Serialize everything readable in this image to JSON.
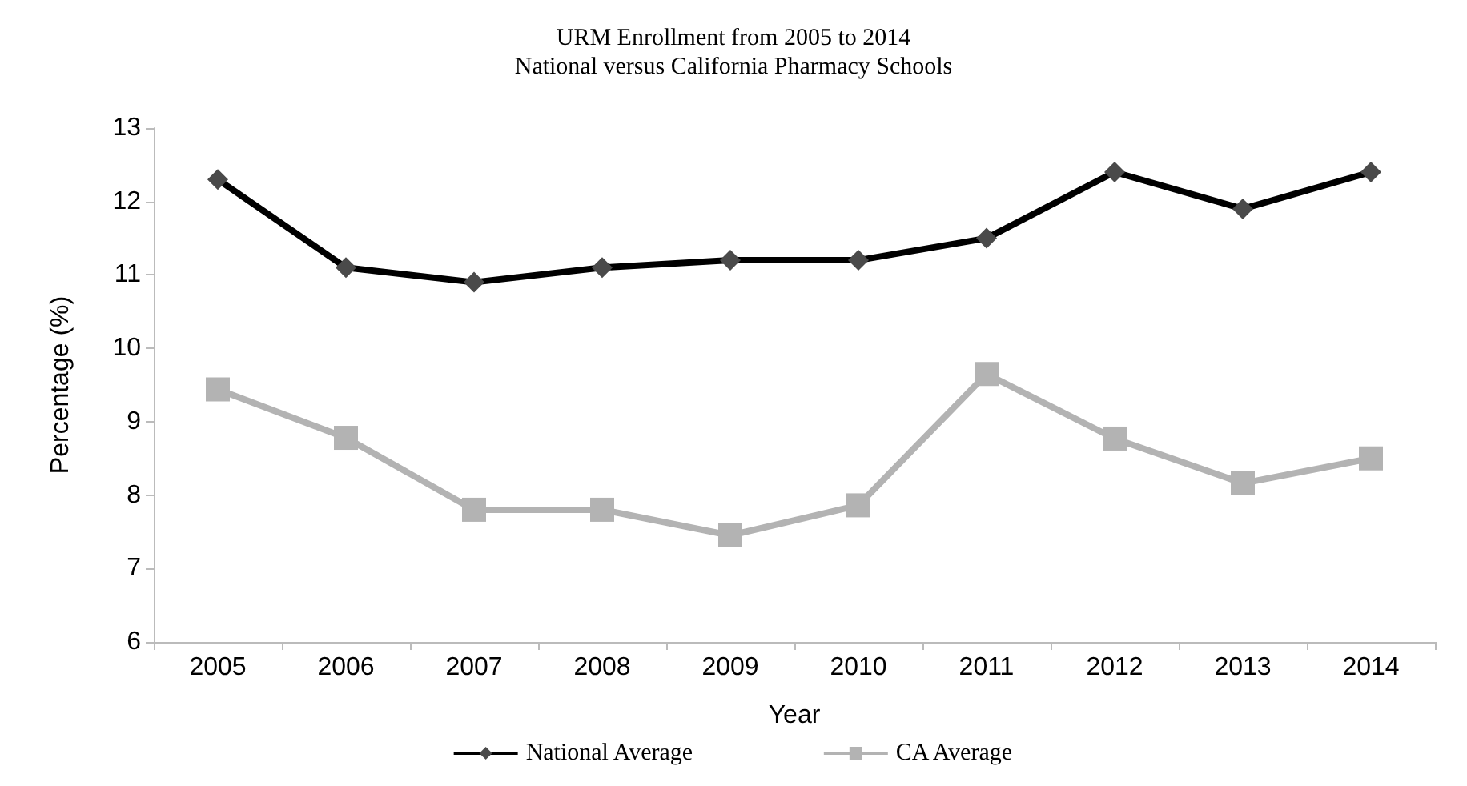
{
  "chart_data": {
    "type": "line",
    "title": "URM Enrollment from 2005 to 2014\nNational versus California Pharmacy Schools",
    "xlabel": "Year",
    "ylabel": "Percentage (%)",
    "categories": [
      "2005",
      "2006",
      "2007",
      "2008",
      "2009",
      "2010",
      "2011",
      "2012",
      "2013",
      "2014"
    ],
    "series": [
      {
        "name": "National Average",
        "color": "#000000",
        "marker": "diamond",
        "values": [
          12.3,
          11.1,
          10.9,
          11.1,
          11.2,
          11.2,
          11.5,
          12.4,
          11.9,
          12.4
        ]
      },
      {
        "name": "CA Average",
        "color": "#b3b3b3",
        "marker": "square",
        "values": [
          9.44,
          8.78,
          7.8,
          7.8,
          7.45,
          7.86,
          9.65,
          8.77,
          8.16,
          8.5
        ]
      }
    ],
    "ylim": [
      6,
      13
    ],
    "yticks": [
      6,
      7,
      8,
      9,
      10,
      11,
      12,
      13
    ],
    "grid": false,
    "legend": "bottom",
    "line_style": "solid"
  }
}
